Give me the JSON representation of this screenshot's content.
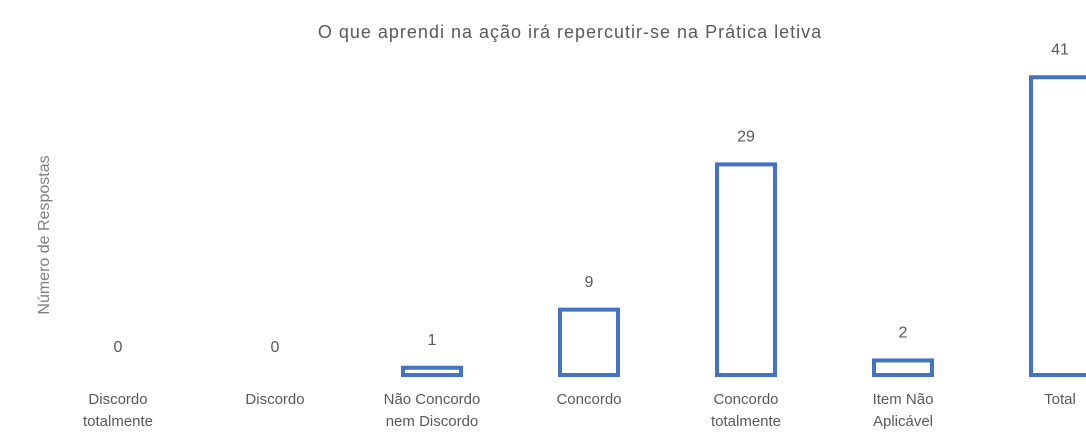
{
  "chart_data": {
    "type": "bar",
    "title": "O que aprendi na ação irá repercutir-se na Prática letiva",
    "y_label": "Número de Respostas",
    "categories": [
      "Discordo totalmente",
      "Discordo",
      "Não Concordo nem Discordo",
      "Concordo",
      "Concordo totalmente",
      "Item Não Aplicável",
      "Total"
    ],
    "values": [
      0,
      0,
      1,
      9,
      29,
      2,
      41
    ],
    "color": "#4472c4",
    "ylim": [
      0,
      42
    ],
    "grid": false
  }
}
